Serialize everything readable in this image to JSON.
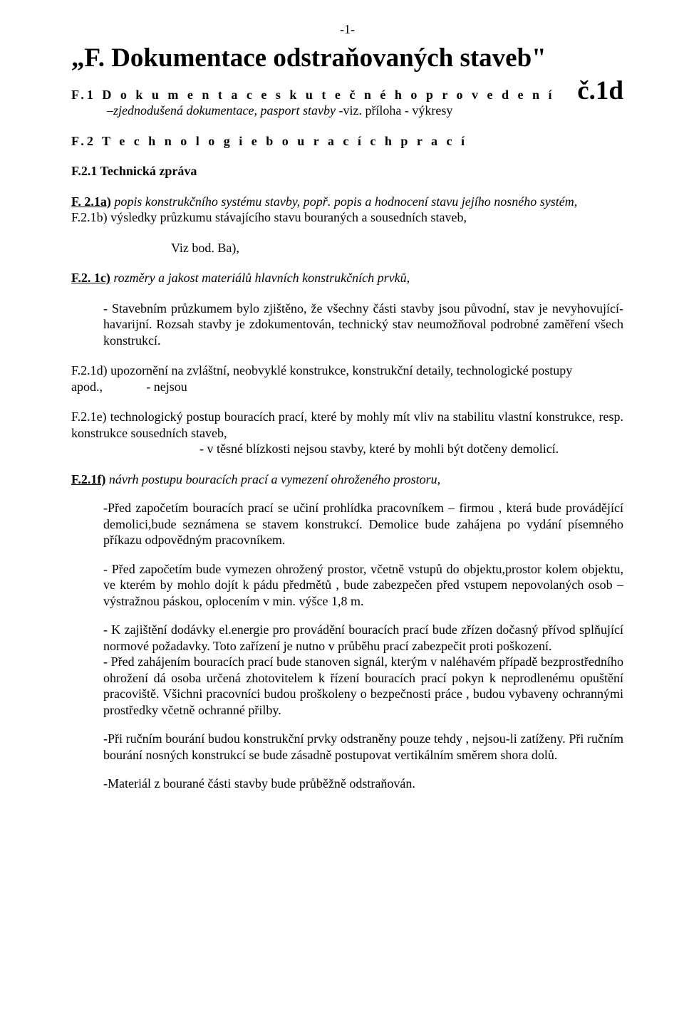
{
  "page_number": "-1-",
  "title_left": "„F. Dokumentace odstraňovaných staveb\"",
  "title_right": "č.1d",
  "f1": "F.1 D o k u m e n t a c e   s k u t e č n é h o   p r o v e d e n í",
  "f1_sub_italic": "–zjednodušená dokumentace, pasport stavby",
  "f1_sub_plain": "   -viz. příloha -  výkresy",
  "f2": "F.2 T e c h n o l o g i e   b o u r a c í c h   p r a c í",
  "f21": "F.2.1 Technická zpráva",
  "f21a_label": "F. 2.1a)",
  "f21a_body": "  popis konstrukčního systému stavby, popř.  popis a hodnocení stavu jejího nosného systém,",
  "f21b_label": "F.2.1b",
  "f21b_body": ")  výsledky průzkumu stávajícího stavu bouraných a sousedních staveb,",
  "viz_bod": "Viz bod. Ba),",
  "f21c_label": "F.2. 1c)",
  "f21c_body": "  rozměry a jakost materiálů hlavních konstrukčních prvků,",
  "f21c_para": "- Stavebním průzkumem bylo zjištěno, že všechny části stavby jsou původní, stav  je nevyhovující- havarijní. Rozsah stavby je  zdokumentován, technický stav neumožňoval podrobné zaměření všech konstrukcí.",
  "f21d_label": "F.2.1d)",
  "f21d_body": "  upozornění na zvláštní, neobvyklé konstrukce, konstrukční detaily, technologické postupy",
  "f21d_apod": "apod.,",
  "f21d_neni": "- nejsou",
  "f21e_label": "F.2.1e)",
  "f21e_body": "  technologický postup bouracích prací, které by mohly mít vliv na stabilitu vlastní konstrukce, resp. konstrukce sousedních staveb,",
  "f21e_note": "- v těsné blízkosti nejsou  stavby, které by mohli být dotčeny  demolicí.",
  "f21f_label": "F.2.1f)",
  "f21f_body": "  návrh postupu bouracích prací a vymezení ohroženého prostoru,",
  "f21f_p1": "-Před započetím bouracích prací se učiní prohlídka pracovníkem – firmou , která bude provádějící demolici,bude seznámena se stavem konstrukcí. Demolice bude zahájena po vydání písemného příkazu odpovědným pracovníkem.",
  "f21f_p2": "- Před započetím bude vymezen ohrožený prostor, včetně vstupů do objektu,prostor kolem objektu, ve kterém by mohlo dojít k pádu předmětů , bude zabezpečen před vstupem nepovolaných osob – výstražnou páskou, oplocením v min. výšce 1,8 m.",
  "f21f_p3": "- K zajištění dodávky el.energie pro provádění bouracích prací bude zřízen dočasný přívod splňující normové požadavky. Toto zařízení je nutno v průběhu prací zabezpečit proti poškození.",
  "f21f_p4": "- Před zahájením bouracích prací bude stanoven signál, kterým v naléhavém případě bezprostředního ohrožení dá osoba určená zhotovitelem k řízení bouracích prací pokyn k neprodlenému opuštění pracoviště. Všichni pracovníci budou proškoleny o bezpečnosti práce , budou vybaveny ochrannými prostředky včetně  ochranné přilby.",
  "f21f_p5": "-Při ručním bourání budou konstrukční prvky odstraněny pouze tehdy , nejsou-li zatíženy. Při ručním bourání nosných konstrukcí se bude zásadně postupovat vertikálním směrem shora dolů.",
  "f21f_p6": "-Materiál z bourané části stavby bude průběžně odstraňován."
}
